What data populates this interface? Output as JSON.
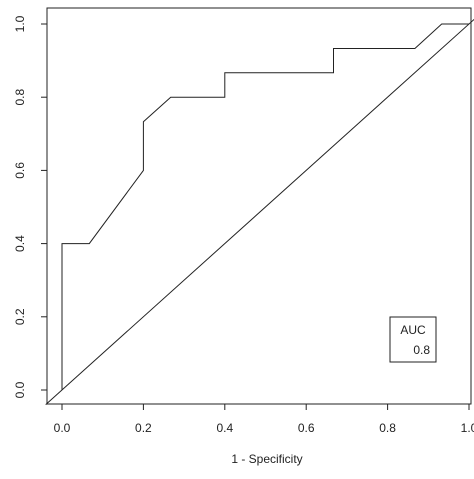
{
  "chart_data": {
    "type": "line",
    "xlabel": "1 - Specificity",
    "ylabel": "",
    "xlim": [
      0.0,
      1.0
    ],
    "ylim": [
      0.0,
      1.0
    ],
    "x_ticks": [
      "0.0",
      "0.2",
      "0.4",
      "0.6",
      "0.8",
      "1.0"
    ],
    "y_ticks": [
      "0.0",
      "0.2",
      "0.4",
      "0.6",
      "0.8",
      "1.0"
    ],
    "grid": false,
    "series": [
      {
        "values": [
          {
            "x": 0.0,
            "y": 0.0
          },
          {
            "x": 0.0,
            "y": 0.4
          },
          {
            "x": 0.067,
            "y": 0.4
          },
          {
            "x": 0.2,
            "y": 0.6
          },
          {
            "x": 0.2,
            "y": 0.733
          },
          {
            "x": 0.267,
            "y": 0.8
          },
          {
            "x": 0.4,
            "y": 0.8
          },
          {
            "x": 0.4,
            "y": 0.867
          },
          {
            "x": 0.667,
            "y": 0.867
          },
          {
            "x": 0.667,
            "y": 0.933
          },
          {
            "x": 0.867,
            "y": 0.933
          },
          {
            "x": 0.933,
            "y": 1.0
          },
          {
            "x": 1.0,
            "y": 1.0
          }
        ]
      },
      {
        "values": [
          {
            "x": -0.04,
            "y": -0.04
          },
          {
            "x": 1.02,
            "y": 1.02
          }
        ]
      }
    ],
    "legend": {
      "title": "AUC",
      "value": "0.8",
      "placement": "bottom-right"
    }
  }
}
